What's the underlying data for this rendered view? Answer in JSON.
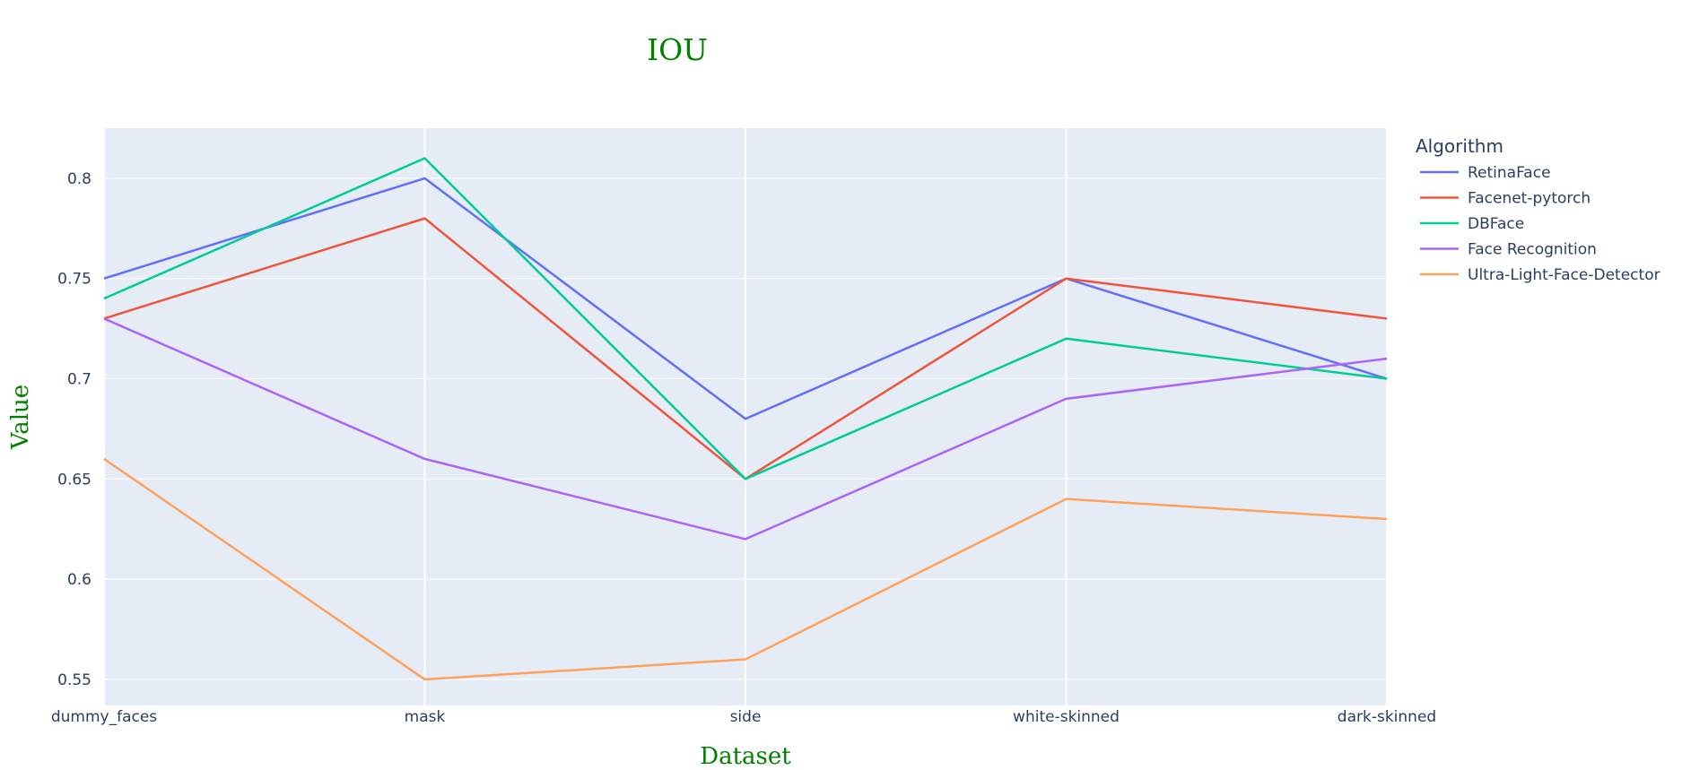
{
  "chart_data": {
    "type": "line",
    "title": "IOU",
    "xlabel": "Dataset",
    "ylabel": "Value",
    "categories": [
      "dummy_faces",
      "mask",
      "side",
      "white-skinned",
      "dark-skinned"
    ],
    "ylim": [
      0.537,
      0.825
    ],
    "yticks": [
      0.55,
      0.6,
      0.65,
      0.7,
      0.75,
      0.8
    ],
    "ytick_labels": [
      "0.55",
      "0.6",
      "0.65",
      "0.7",
      "0.75",
      "0.8"
    ],
    "grid": true,
    "legend": {
      "title": "Algorithm",
      "placement": "top-right, outside plot"
    },
    "colors": {
      "plot_bg": "#e5ecf6",
      "grid": "#ffffff",
      "title": "#008000"
    },
    "series": [
      {
        "name": "RetinaFace",
        "color": "#636efa",
        "values": [
          0.75,
          0.8,
          0.68,
          0.75,
          0.7
        ]
      },
      {
        "name": "Facenet-pytorch",
        "color": "#ef553b",
        "values": [
          0.73,
          0.78,
          0.65,
          0.75,
          0.73
        ]
      },
      {
        "name": "DBFace",
        "color": "#00cc96",
        "values": [
          0.74,
          0.81,
          0.65,
          0.72,
          0.7
        ]
      },
      {
        "name": "Face Recognition",
        "color": "#ab63fa",
        "values": [
          0.73,
          0.66,
          0.62,
          0.69,
          0.71
        ]
      },
      {
        "name": "Ultra-Light-Face-Detector",
        "color": "#ffa15a",
        "values": [
          0.66,
          0.55,
          0.56,
          0.64,
          0.63
        ]
      }
    ]
  }
}
